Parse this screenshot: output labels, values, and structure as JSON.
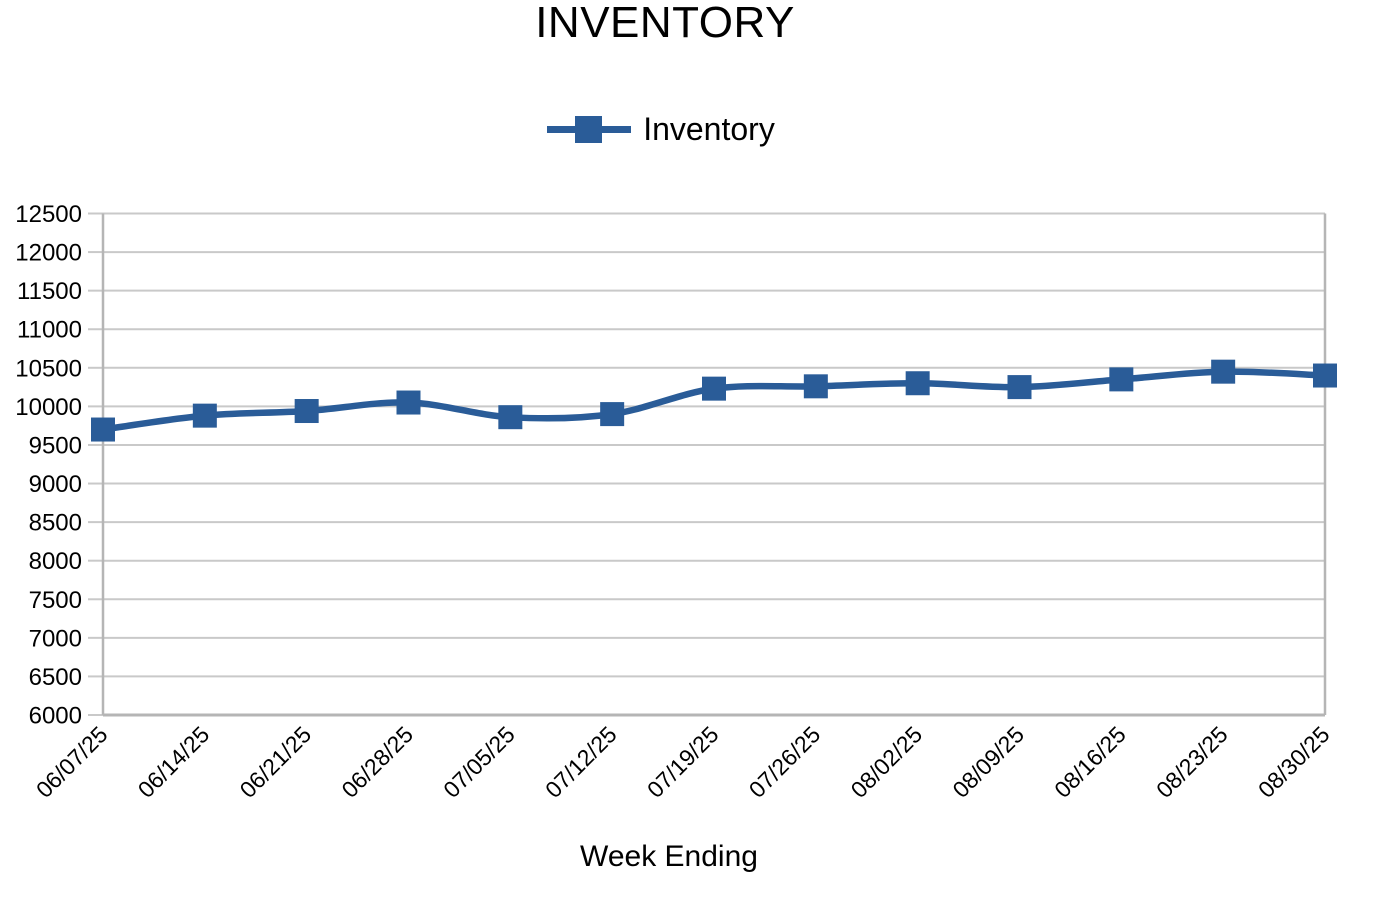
{
  "chart_data": {
    "type": "line",
    "title": "INVENTORY",
    "xlabel": "Week Ending",
    "ylabel": "",
    "legend_position": "top",
    "grid": true,
    "smooth": true,
    "marker_shape": "square",
    "categories": [
      "06/07/25",
      "06/14/25",
      "06/21/25",
      "06/28/25",
      "07/05/25",
      "07/12/25",
      "07/19/25",
      "07/26/25",
      "08/02/25",
      "08/09/25",
      "08/16/25",
      "08/23/25",
      "08/30/25"
    ],
    "series": [
      {
        "name": "Inventory",
        "values": [
          9700,
          9880,
          9940,
          10050,
          9860,
          9900,
          10230,
          10260,
          10300,
          10250,
          10350,
          10450,
          10400
        ]
      }
    ],
    "ylim": [
      6000,
      12500
    ],
    "ytick_step": 500,
    "y_ticks": [
      6000,
      6500,
      7000,
      7500,
      8000,
      8500,
      9000,
      9500,
      10000,
      10500,
      11000,
      11500,
      12000,
      12500
    ],
    "colors": {
      "series": "#2A5C98",
      "gridline": "#C9C9C9",
      "axis_line": "#B5B5B5",
      "text": "#000000",
      "background": "#FFFFFF"
    }
  }
}
